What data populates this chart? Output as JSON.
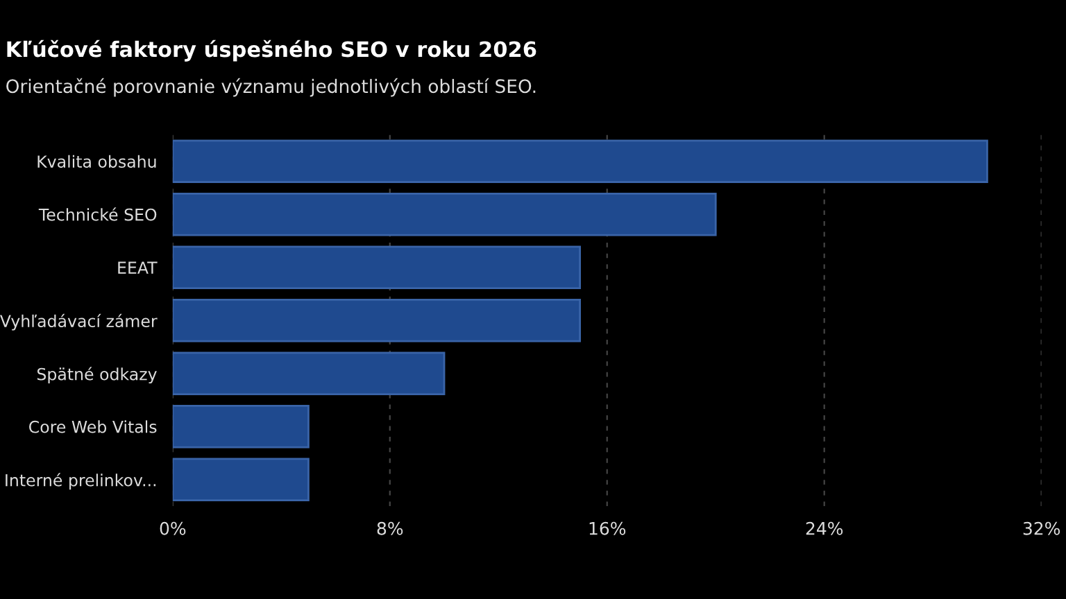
{
  "chart_data": {
    "type": "bar",
    "orientation": "horizontal",
    "title": "Kľúčové faktory úspešného SEO v roku 2026",
    "subtitle": "Orientačné porovnanie významu jednotlivých oblastí SEO.",
    "categories": [
      "Kvalita obsahu",
      "Technické SEO",
      "EEAT",
      "Vyhľadávací zámer",
      "Spätné odkazy",
      "Core Web Vitals",
      "Interné prelinkov..."
    ],
    "values": [
      30,
      20,
      15,
      15,
      10,
      5,
      5
    ],
    "color": "#1f4a8f",
    "xlim": [
      0,
      32
    ],
    "xticks": [
      {
        "value": 0,
        "label": "0%"
      },
      {
        "value": 8,
        "label": "8%"
      },
      {
        "value": 16,
        "label": "16%"
      },
      {
        "value": 24,
        "label": "24%"
      },
      {
        "value": 32,
        "label": "32%"
      }
    ],
    "grid": "x"
  }
}
